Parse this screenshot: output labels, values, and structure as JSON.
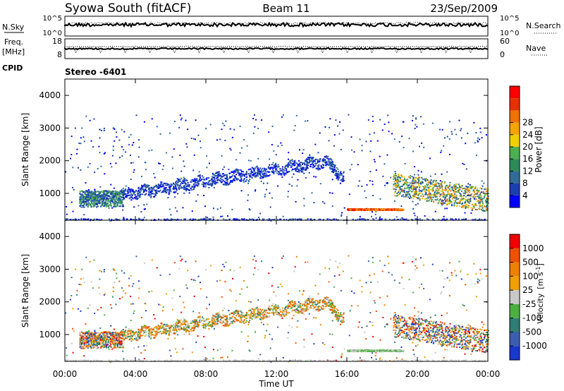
{
  "header": {
    "station": "Syowa South (fitACF)",
    "beam": "Beam 11",
    "date": "23/Sep/2009"
  },
  "noise_panel": {
    "left_label": "N.Sky",
    "left_ticks": [
      "10^5",
      "10^0"
    ],
    "right_label": "N.Search",
    "right_ticks": [
      "10^5",
      "10^0"
    ]
  },
  "freq_panel": {
    "left_label_1": "Freq.",
    "left_label_2": "[MHz]",
    "left_ticks": [
      "18",
      "8"
    ],
    "right_label": "Nave",
    "right_ticks": [
      "60",
      "0"
    ]
  },
  "cpid": {
    "label": "CPID",
    "value": "Stereo -6401"
  },
  "chart_data": [
    {
      "type": "heatmap",
      "panel": "power",
      "ylabel": "Slant Range [km]",
      "xlabel": "Time UT",
      "xlim": [
        "00:00",
        "24:00"
      ],
      "ylim": [
        180,
        4500
      ],
      "x_ticks": [
        "00:00",
        "04:00",
        "08:00",
        "12:00",
        "16:00",
        "20:00",
        "00:00"
      ],
      "y_ticks": [
        1000,
        2000,
        3000,
        4000
      ],
      "colorbar": {
        "label": "Power [dB]",
        "ticks": [
          4,
          8,
          12,
          16,
          20,
          24,
          28
        ],
        "colors": [
          "#0000ff",
          "#1a3fb0",
          "#2f6b96",
          "#2e8b57",
          "#4caf50",
          "#f0d000",
          "#f5a400",
          "#f07000",
          "#e83000",
          "#ff0000"
        ]
      },
      "features": [
        {
          "desc": "scattered echoes",
          "time_range": [
            "00:30",
            "23:30"
          ],
          "range_km": [
            200,
            3400
          ],
          "power_db": [
            4,
            12
          ]
        },
        {
          "desc": "main echo band",
          "time_range": [
            "02:00",
            "15:30"
          ],
          "range_km": [
            900,
            2000
          ],
          "power_db": [
            4,
            12
          ]
        },
        {
          "desc": "strong near-range band",
          "time_range": [
            "16:00",
            "19:00"
          ],
          "range_km": [
            500,
            540
          ],
          "power_db": [
            20,
            28
          ]
        },
        {
          "desc": "late band",
          "time_range": [
            "19:00",
            "24:00"
          ],
          "range_km": [
            400,
            1400
          ],
          "power_db": [
            8,
            24
          ]
        }
      ]
    },
    {
      "type": "heatmap",
      "panel": "velocity",
      "ylabel": "Slant Range [km]",
      "xlabel": "Time UT",
      "xlim": [
        "00:00",
        "24:00"
      ],
      "ylim": [
        180,
        4500
      ],
      "x_ticks": [
        "00:00",
        "04:00",
        "08:00",
        "12:00",
        "16:00",
        "20:00",
        "00:00"
      ],
      "y_ticks": [
        1000,
        2000,
        3000,
        4000
      ],
      "colorbar": {
        "label": "Velocity",
        "unit_base": "[m s",
        "unit_exp": "-1",
        "unit_close": "]",
        "ticks": [
          1000,
          500,
          100,
          25,
          -25,
          -100,
          -500,
          -1000
        ],
        "colors": [
          "#1838d0",
          "#3a5eb0",
          "#2f7d74",
          "#4cb040",
          "#c8c8c8",
          "#f0a000",
          "#f08000",
          "#f05000",
          "#f00000"
        ]
      },
      "features": [
        {
          "desc": "mixed echoes",
          "time_range": [
            "00:30",
            "23:30"
          ],
          "range_km": [
            200,
            3400
          ],
          "velocity_ms": [
            -500,
            500
          ]
        },
        {
          "desc": "main echo band",
          "time_range": [
            "02:00",
            "15:30"
          ],
          "range_km": [
            900,
            2000
          ],
          "velocity_ms": [
            -500,
            100
          ]
        },
        {
          "desc": "near-range band",
          "time_range": [
            "16:00",
            "19:00"
          ],
          "range_km": [
            500,
            540
          ],
          "velocity_ms": [
            -25,
            100
          ]
        },
        {
          "desc": "late band",
          "time_range": [
            "19:00",
            "24:00"
          ],
          "range_km": [
            400,
            1400
          ],
          "velocity_ms": [
            -500,
            500
          ]
        }
      ]
    }
  ]
}
